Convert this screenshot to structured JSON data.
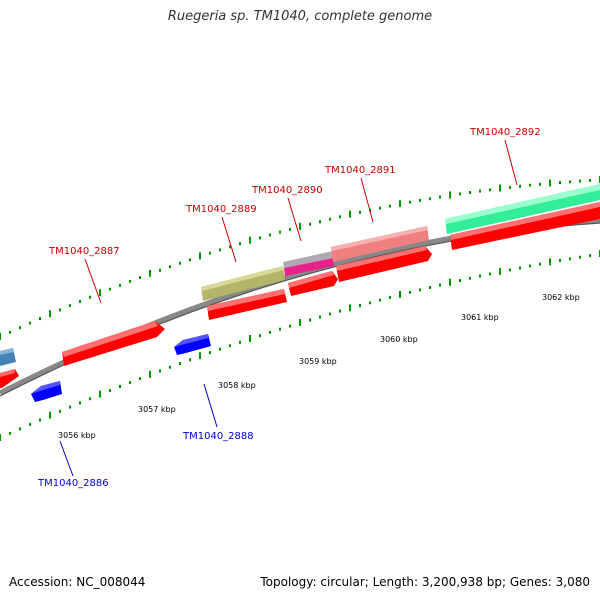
{
  "title": "Ruegeria sp. TM1040, complete genome",
  "footer": {
    "accession": "Accession: NC_008044",
    "stats": "Topology: circular; Length: 3,200,938 bp; Genes: 3,080"
  },
  "colors": {
    "forward_cds": "#ff0000",
    "reverse_cds": "#0000ff",
    "backbone": "#888888",
    "tick": "#009900"
  },
  "scale_labels": [
    "3056 kbp",
    "3057 kbp",
    "3058 kbp",
    "3059 kbp",
    "3060 kbp",
    "3061 kbp",
    "3062 kbp"
  ],
  "gene_labels": [
    {
      "name": "TM1040_2886",
      "strand": "reverse"
    },
    {
      "name": "TM1040_2887",
      "strand": "forward"
    },
    {
      "name": "TM1040_2888",
      "strand": "reverse"
    },
    {
      "name": "TM1040_2889",
      "strand": "forward"
    },
    {
      "name": "TM1040_2890",
      "strand": "forward"
    },
    {
      "name": "TM1040_2891",
      "strand": "forward"
    },
    {
      "name": "TM1040_2892",
      "strand": "forward"
    }
  ],
  "feature_colors": {
    "steelblue": "#4682b4",
    "olive": "#b5b56a",
    "gray": "#b0a8b0",
    "magenta": "#e8208a",
    "salmon": "#f08080",
    "springgreen": "#33ee99"
  }
}
